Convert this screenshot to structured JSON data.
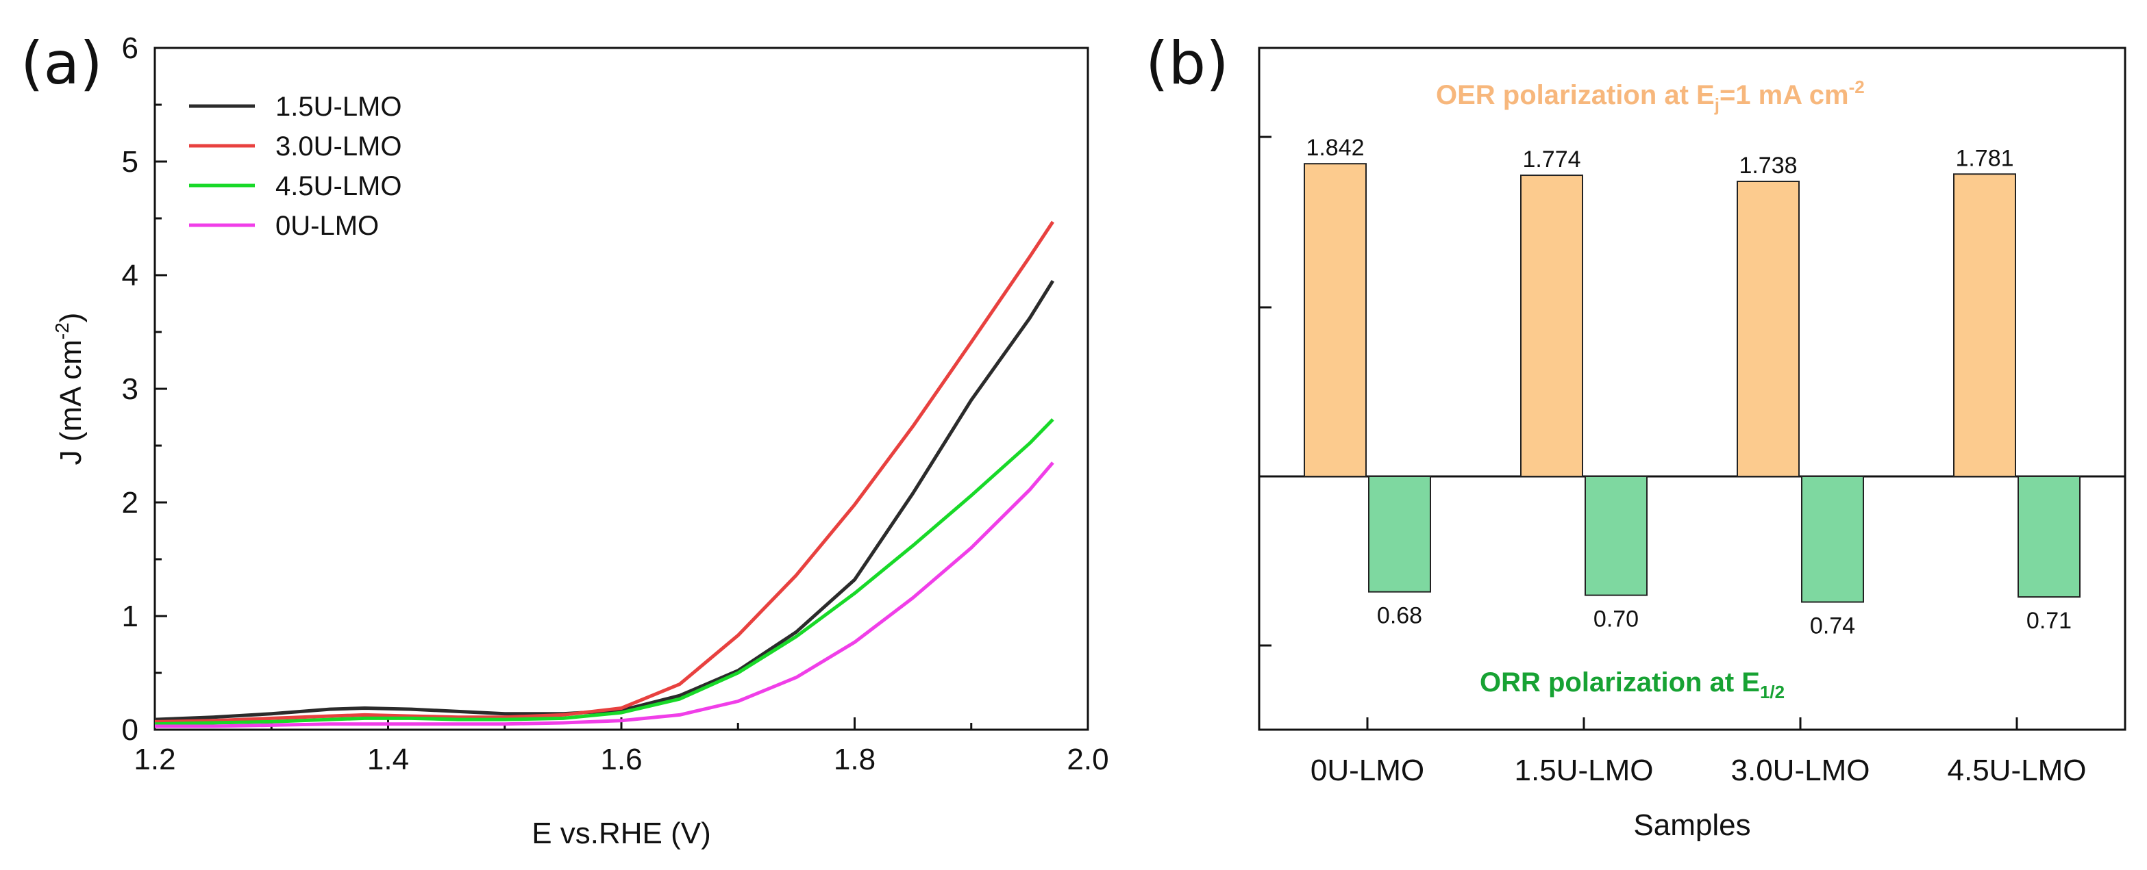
{
  "chart_data": [
    {
      "panel_label": "(a)",
      "type": "line",
      "xlabel": "E vs.RHE (V)",
      "ylabel": "J (mA cm",
      "ylabel_sup": "-2",
      "ylabel_close": ")",
      "xlim": [
        1.2,
        2.0
      ],
      "ylim": [
        0,
        6
      ],
      "xticks": [
        "1.2",
        "1.4",
        "1.6",
        "1.8",
        "2.0"
      ],
      "yticks": [
        "0",
        "1",
        "2",
        "3",
        "4",
        "5",
        "6"
      ],
      "legend_position": "top-left",
      "series": [
        {
          "name": "1.5U-LMO",
          "color": "#2b2b2b",
          "x": [
            1.2,
            1.25,
            1.3,
            1.35,
            1.38,
            1.42,
            1.46,
            1.5,
            1.55,
            1.6,
            1.65,
            1.7,
            1.75,
            1.8,
            1.85,
            1.9,
            1.95,
            1.97
          ],
          "y": [
            0.09,
            0.11,
            0.14,
            0.18,
            0.19,
            0.18,
            0.16,
            0.14,
            0.14,
            0.17,
            0.3,
            0.52,
            0.86,
            1.32,
            2.08,
            2.9,
            3.62,
            3.95
          ]
        },
        {
          "name": "3.0U-LMO",
          "color": "#e8413f",
          "x": [
            1.2,
            1.25,
            1.3,
            1.35,
            1.38,
            1.42,
            1.46,
            1.5,
            1.55,
            1.6,
            1.65,
            1.7,
            1.75,
            1.8,
            1.85,
            1.9,
            1.95,
            1.97
          ],
          "y": [
            0.07,
            0.08,
            0.1,
            0.12,
            0.13,
            0.12,
            0.11,
            0.11,
            0.13,
            0.19,
            0.4,
            0.83,
            1.36,
            1.98,
            2.67,
            3.41,
            4.16,
            4.47
          ]
        },
        {
          "name": "4.5U-LMO",
          "color": "#18d928",
          "x": [
            1.2,
            1.25,
            1.3,
            1.35,
            1.38,
            1.42,
            1.46,
            1.5,
            1.55,
            1.6,
            1.65,
            1.7,
            1.75,
            1.8,
            1.85,
            1.9,
            1.95,
            1.97
          ],
          "y": [
            0.05,
            0.06,
            0.07,
            0.09,
            0.1,
            0.1,
            0.09,
            0.09,
            0.1,
            0.15,
            0.27,
            0.5,
            0.82,
            1.2,
            1.62,
            2.06,
            2.52,
            2.73
          ]
        },
        {
          "name": "0U-LMO",
          "color": "#f03ee8",
          "x": [
            1.2,
            1.25,
            1.3,
            1.35,
            1.38,
            1.42,
            1.46,
            1.5,
            1.55,
            1.6,
            1.65,
            1.7,
            1.75,
            1.8,
            1.85,
            1.9,
            1.95,
            1.97
          ],
          "y": [
            0.03,
            0.03,
            0.04,
            0.05,
            0.05,
            0.05,
            0.05,
            0.05,
            0.06,
            0.08,
            0.13,
            0.25,
            0.46,
            0.77,
            1.16,
            1.6,
            2.11,
            2.35
          ]
        }
      ]
    },
    {
      "panel_label": "(b)",
      "type": "bar",
      "xlabel": "Samples",
      "categories": [
        "0U-LMO",
        "1.5U-LMO",
        "3.0U-LMO",
        "4.5U-LMO"
      ],
      "series": [
        {
          "name": "OER polarization at Ej=1 mA cm-2",
          "color": "#fccb8e",
          "values": [
            1.842,
            1.774,
            1.738,
            1.781
          ],
          "labels": [
            "1.842",
            "1.774",
            "1.738",
            "1.781"
          ]
        },
        {
          "name": "ORR polarization at E1/2",
          "color": "#7ed8a0",
          "values": [
            0.68,
            0.7,
            0.74,
            0.71
          ],
          "labels": [
            "0.68",
            "0.70",
            "0.74",
            "0.71"
          ]
        }
      ],
      "annotation_oer": {
        "main": "OER polarization at E",
        "sub": "j",
        "rest": "=1 mA cm",
        "sup": "-2"
      },
      "annotation_orr": {
        "main": "ORR polarization at E",
        "sub": "1/2"
      }
    }
  ]
}
